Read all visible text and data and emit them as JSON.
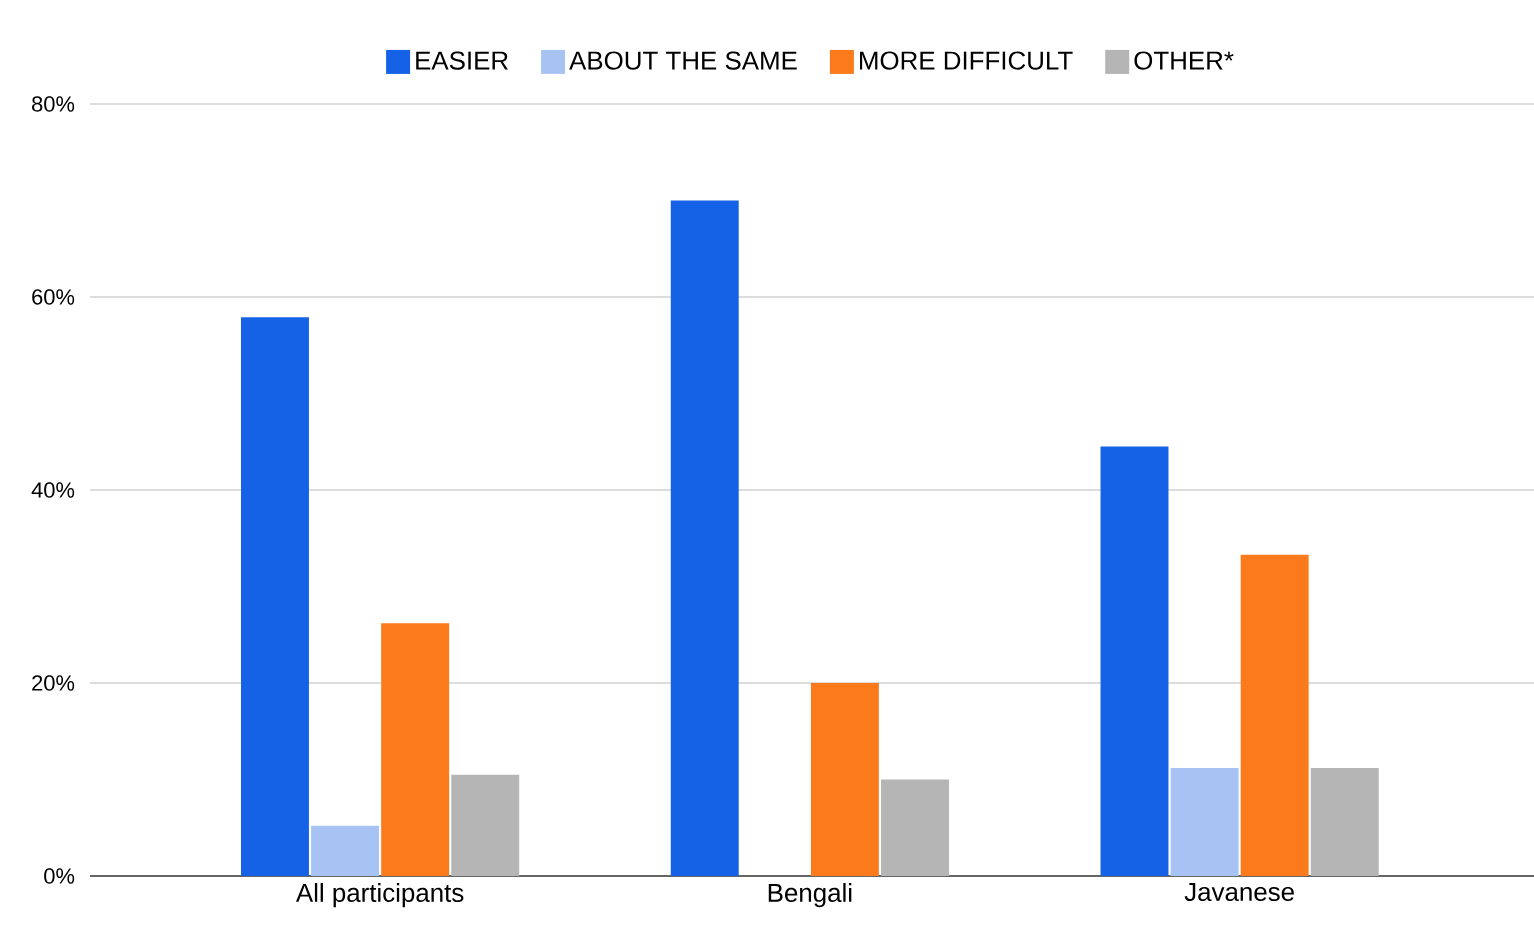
{
  "chart_data": {
    "type": "bar",
    "categories": [
      "All participants",
      "Bengali",
      "Javanese"
    ],
    "series": [
      {
        "name": "EASIER",
        "color": "#1562e6",
        "values": [
          57.9,
          70.0,
          44.5
        ]
      },
      {
        "name": "ABOUT THE SAME",
        "color": "#a6c3f3",
        "values": [
          5.2,
          0,
          11.2
        ]
      },
      {
        "name": "MORE DIFFICULT",
        "color": "#fa7a1c",
        "values": [
          26.2,
          20.0,
          33.3
        ]
      },
      {
        "name": "OTHER*",
        "color": "#b5b5b5",
        "values": [
          10.5,
          10.0,
          11.2
        ]
      }
    ],
    "ylim": [
      0,
      80
    ],
    "yticks": [
      {
        "value": 0,
        "label": "0%"
      },
      {
        "value": 20,
        "label": "20%"
      },
      {
        "value": 40,
        "label": "40%"
      },
      {
        "value": 60,
        "label": "60%"
      },
      {
        "value": 80,
        "label": "80%"
      }
    ],
    "grid": "y",
    "legend": "top"
  }
}
